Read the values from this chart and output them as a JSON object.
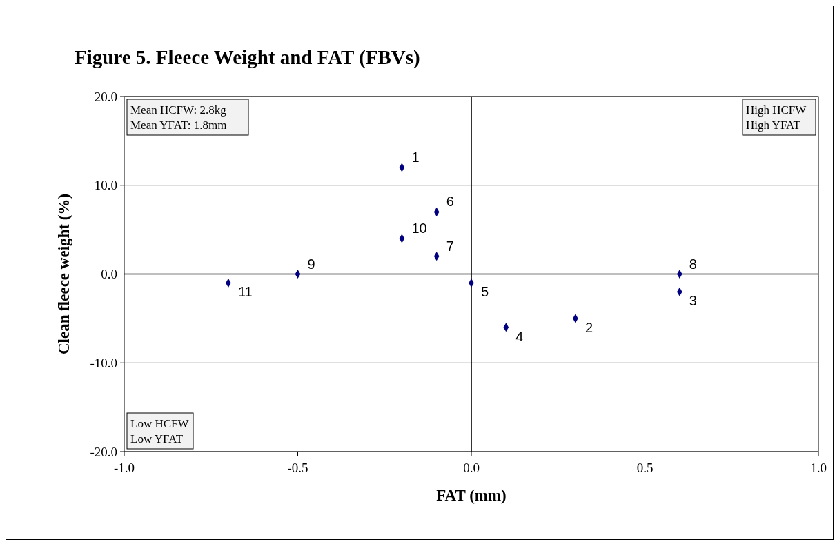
{
  "chart_data": {
    "type": "scatter",
    "title": "Figure 5.  Fleece Weight and FAT (FBVs)",
    "xlabel": "FAT (mm)",
    "ylabel": "Clean fleece weight (%)",
    "x": [
      -0.2,
      0.3,
      0.6,
      0.1,
      0.0,
      -0.1,
      -0.1,
      0.6,
      -0.5,
      -0.2,
      -0.7
    ],
    "values": [
      12,
      -5,
      -2,
      -6,
      -1,
      7,
      2,
      0,
      0,
      4,
      -1
    ],
    "color": "#000080",
    "marker": "diamond",
    "xlim": [
      -1,
      1
    ],
    "xticks": [
      {
        "value": -1,
        "label": "-1.0"
      },
      {
        "value": -0.5,
        "label": "-0.5"
      },
      {
        "value": 0,
        "label": "0.0"
      },
      {
        "value": 0.5,
        "label": "0.5"
      },
      {
        "value": 1,
        "label": "1.0"
      }
    ],
    "ylim": [
      -20,
      20
    ],
    "yticks": [
      {
        "value": -20,
        "label": "-20.0"
      },
      {
        "value": -10,
        "label": "-10.0"
      },
      {
        "value": 0,
        "label": "0.0"
      },
      {
        "value": 10,
        "label": "10.0"
      },
      {
        "value": 20,
        "label": "20.0"
      }
    ],
    "grid": "y",
    "ref_lines": [
      {
        "axis": "x",
        "value": 0,
        "color": "#000000"
      }
    ],
    "annotations": [
      "Mean HCFW: 2.8kg\nMean YFAT: 1.8mm",
      "High HCFW\nHigh YFAT",
      "Low HCFW\nLow YFAT",
      {
        "text": "1",
        "x": -0.2,
        "y": 12
      },
      {
        "text": "2",
        "x": 0.3,
        "y": -5
      },
      {
        "text": "3",
        "x": 0.6,
        "y": -2
      },
      {
        "text": "4",
        "x": 0.1,
        "y": -6
      },
      {
        "text": "5",
        "x": 0.0,
        "y": -1
      },
      {
        "text": "6",
        "x": -0.1,
        "y": 7
      },
      {
        "text": "7",
        "x": -0.1,
        "y": 2
      },
      {
        "text": "8",
        "x": 0.6,
        "y": 0
      },
      {
        "text": "9",
        "x": -0.5,
        "y": 0
      },
      {
        "text": "10",
        "x": -0.2,
        "y": 4
      },
      {
        "text": "11",
        "x": -0.7,
        "y": -1
      }
    ]
  }
}
